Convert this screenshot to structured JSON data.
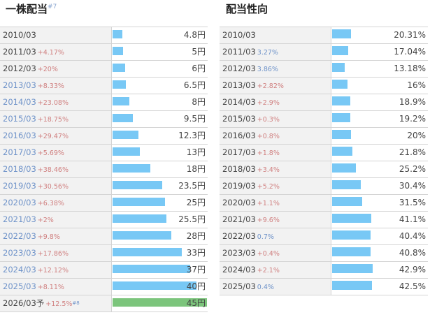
{
  "left": {
    "title": "一株配当",
    "title_note": "#7",
    "rows": [
      {
        "year": "2010/03",
        "change": "",
        "value_text": "4.8円",
        "value": 4.8
      },
      {
        "year": "2011/03",
        "change": "+4.17%",
        "value_text": "5円",
        "value": 5
      },
      {
        "year": "2012/03",
        "change": "+20%",
        "value_text": "6円",
        "value": 6
      },
      {
        "year": "2013/03",
        "change": "+8.33%",
        "value_text": "6.5円",
        "value": 6.5
      },
      {
        "year": "2014/03",
        "change": "+23.08%",
        "value_text": "8円",
        "value": 8
      },
      {
        "year": "2015/03",
        "change": "+18.75%",
        "value_text": "9.5円",
        "value": 9.5
      },
      {
        "year": "2016/03",
        "change": "+29.47%",
        "value_text": "12.3円",
        "value": 12.3
      },
      {
        "year": "2017/03",
        "change": "+5.69%",
        "value_text": "13円",
        "value": 13
      },
      {
        "year": "2018/03",
        "change": "+38.46%",
        "value_text": "18円",
        "value": 18
      },
      {
        "year": "2019/03",
        "change": "+30.56%",
        "value_text": "23.5円",
        "value": 23.5
      },
      {
        "year": "2020/03",
        "change": "+6.38%",
        "value_text": "25円",
        "value": 25
      },
      {
        "year": "2021/03",
        "change": "+2%",
        "value_text": "25.5円",
        "value": 25.5
      },
      {
        "year": "2022/03",
        "change": "+9.8%",
        "value_text": "28円",
        "value": 28
      },
      {
        "year": "2023/03",
        "change": "+17.86%",
        "value_text": "33円",
        "value": 33
      },
      {
        "year": "2024/03",
        "change": "+12.12%",
        "value_text": "37円",
        "value": 37
      },
      {
        "year": "2025/03",
        "change": "+8.11%",
        "value_text": "40円",
        "value": 40
      },
      {
        "year": "2026/03予",
        "change": "+12.5%",
        "footnote": "#8",
        "value_text": "45円",
        "value": 45,
        "forecast": true
      }
    ]
  },
  "right": {
    "title": "配当性向",
    "rows": [
      {
        "year": "2010/03",
        "change": "",
        "value_text": "20.31%",
        "value": 20.31
      },
      {
        "year": "2011/03",
        "change": "3.27%",
        "dir": "down",
        "value_text": "17.04%",
        "value": 17.04
      },
      {
        "year": "2012/03",
        "change": "3.86%",
        "dir": "down",
        "value_text": "13.18%",
        "value": 13.18
      },
      {
        "year": "2013/03",
        "change": "+2.82%",
        "dir": "up",
        "value_text": "16%",
        "value": 16
      },
      {
        "year": "2014/03",
        "change": "+2.9%",
        "dir": "up",
        "value_text": "18.9%",
        "value": 18.9
      },
      {
        "year": "2015/03",
        "change": "+0.3%",
        "dir": "up",
        "value_text": "19.2%",
        "value": 19.2
      },
      {
        "year": "2016/03",
        "change": "+0.8%",
        "dir": "up",
        "value_text": "20%",
        "value": 20
      },
      {
        "year": "2017/03",
        "change": "+1.8%",
        "dir": "up",
        "value_text": "21.8%",
        "value": 21.8
      },
      {
        "year": "2018/03",
        "change": "+3.4%",
        "dir": "up",
        "value_text": "25.2%",
        "value": 25.2
      },
      {
        "year": "2019/03",
        "change": "+5.2%",
        "dir": "up",
        "value_text": "30.4%",
        "value": 30.4
      },
      {
        "year": "2020/03",
        "change": "+1.1%",
        "dir": "up",
        "value_text": "31.5%",
        "value": 31.5
      },
      {
        "year": "2021/03",
        "change": "+9.6%",
        "dir": "up",
        "value_text": "41.1%",
        "value": 41.1
      },
      {
        "year": "2022/03",
        "change": "0.7%",
        "dir": "down",
        "value_text": "40.4%",
        "value": 40.4
      },
      {
        "year": "2023/03",
        "change": "+0.4%",
        "dir": "up",
        "value_text": "40.8%",
        "value": 40.8
      },
      {
        "year": "2024/03",
        "change": "+2.1%",
        "dir": "up",
        "value_text": "42.9%",
        "value": 42.9
      },
      {
        "year": "2025/03",
        "change": "0.4%",
        "dir": "down",
        "value_text": "42.5%",
        "value": 42.5
      }
    ]
  },
  "colors": {
    "bar": "#78c8f5",
    "forecast_bar": "#7cc57c",
    "up": "#d08080",
    "down": "#6f93c9"
  }
}
